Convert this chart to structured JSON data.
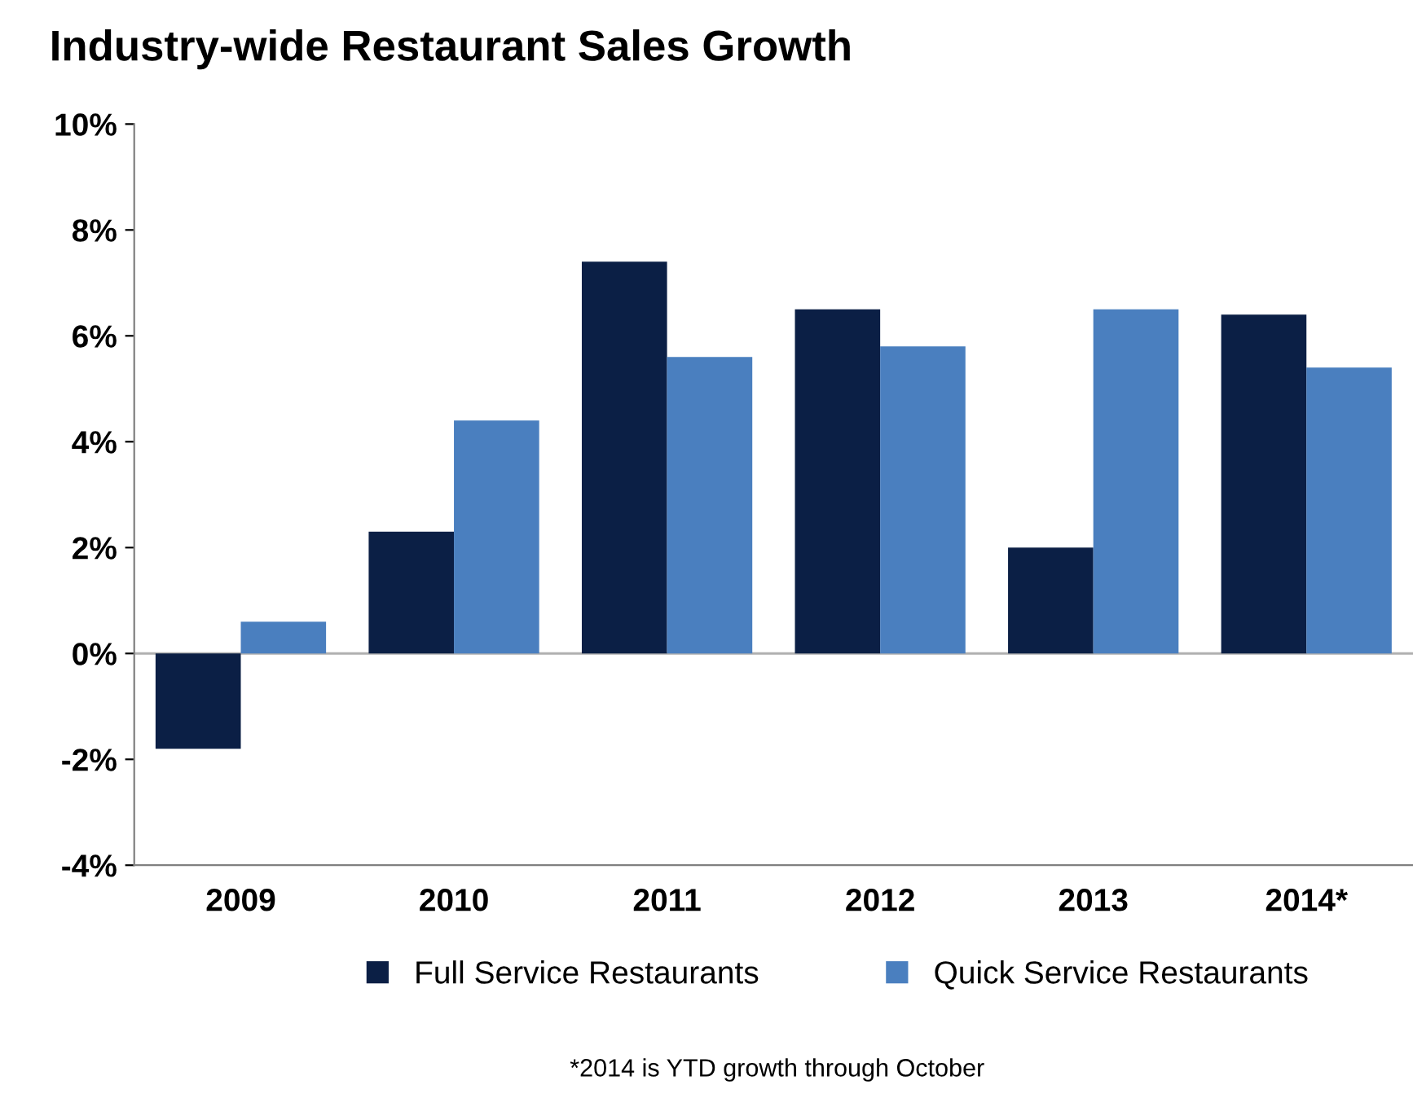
{
  "chart_data": {
    "type": "bar",
    "title": "Industry-wide Restaurant Sales Growth",
    "categories": [
      "2009",
      "2010",
      "2011",
      "2012",
      "2013",
      "2014*"
    ],
    "series": [
      {
        "name": "Full Service Restaurants",
        "color": "#0b1f45",
        "values": [
          -1.8,
          2.3,
          7.4,
          6.5,
          2.0,
          6.4
        ]
      },
      {
        "name": "Quick Service Restaurants",
        "color": "#4a7fbf",
        "values": [
          0.6,
          4.4,
          5.6,
          5.8,
          6.5,
          5.4
        ]
      }
    ],
    "ylim": [
      -4,
      10
    ],
    "yticks": [
      {
        "value": -4,
        "label": "-4%"
      },
      {
        "value": -2,
        "label": "-2%"
      },
      {
        "value": 0,
        "label": "0%"
      },
      {
        "value": 2,
        "label": "2%"
      },
      {
        "value": 4,
        "label": "4%"
      },
      {
        "value": 6,
        "label": "6%"
      },
      {
        "value": 8,
        "label": "8%"
      },
      {
        "value": 10,
        "label": "10%"
      }
    ],
    "ref_lines": [
      {
        "axis": "y",
        "value": 0,
        "color": "#b0b0b0"
      }
    ],
    "grid": false,
    "legend": "bottom",
    "annotations": [
      "*2014 is YTD growth through October"
    ]
  }
}
